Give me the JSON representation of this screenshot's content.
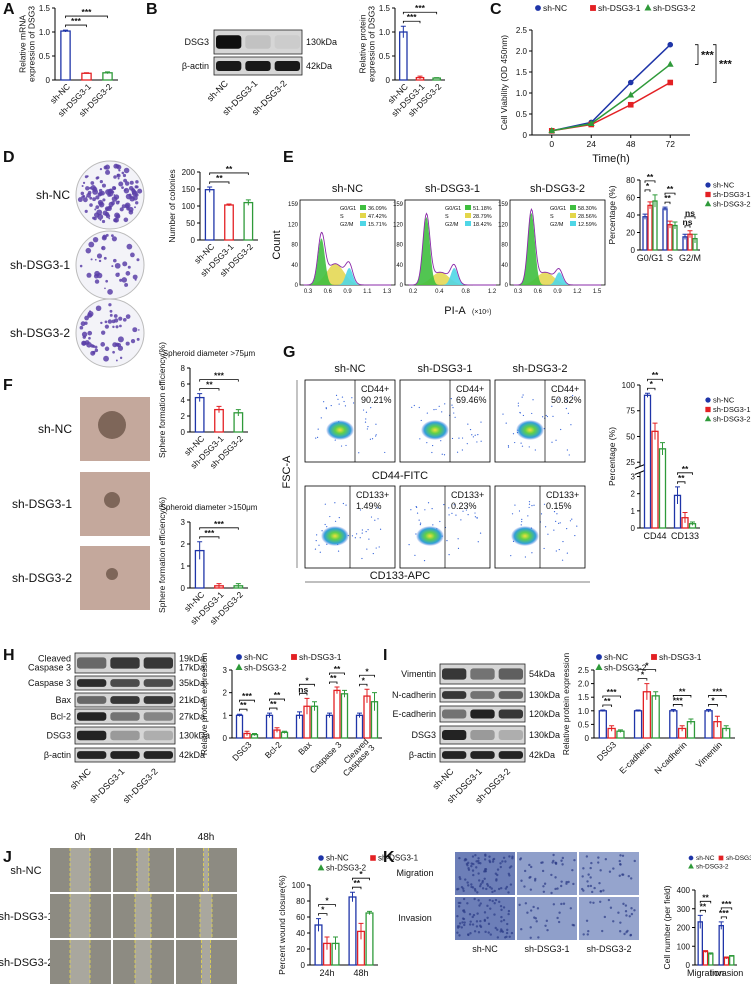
{
  "letters": [
    "A",
    "B",
    "C",
    "D",
    "E",
    "F",
    "G",
    "H",
    "I",
    "J",
    "K"
  ],
  "blots": [
    {
      "rows": [
        {
          "name": "DSG3",
          "kda": "130kDa"
        },
        {
          "name": "β-actin",
          "kda": "42kDa"
        }
      ],
      "lanes": [
        "sh-NC",
        "sh-DSG3-1",
        "sh-DSG3-2"
      ]
    },
    {
      "rows": [
        {
          "name": [
            "Cleaved",
            "Caspase 3"
          ],
          "kda": [
            "19kDa",
            "17kDa"
          ]
        },
        {
          "name": "Caspase 3",
          "kda": "35kDa"
        },
        {
          "name": "Bax",
          "kda": "21kDa"
        },
        {
          "name": "Bcl-2",
          "kda": "27kDa"
        },
        {
          "name": "DSG3",
          "kda": "130kDa"
        },
        {
          "name": "β-actin",
          "kda": "42kDa"
        }
      ],
      "lanes": [
        "sh-NC",
        "sh-DSG3-1",
        "sh-DSG3-2"
      ]
    },
    {
      "rows": [
        {
          "name": "Vimentin",
          "kda": "54kDa"
        },
        {
          "name": "N-cadherin",
          "kda": "130kDa"
        },
        {
          "name": "E-cadherin",
          "kda": "120kDa"
        },
        {
          "name": "DSG3",
          "kda": "130kDa"
        },
        {
          "name": "β-actin",
          "kda": "42kDa"
        }
      ],
      "lanes": [
        "sh-NC",
        "sh-DSG3-1",
        "sh-DSG3-2"
      ]
    }
  ],
  "colonies": {
    "labels": [
      "sh-NC",
      "sh-DSG3-1",
      "sh-DSG3-2"
    ]
  },
  "spheres": {
    "labels": [
      "sh-NC",
      "sh-DSG3-1",
      "sh-DSG3-2"
    ]
  },
  "cell_cycle": {
    "ylabel": "Count",
    "xlabel": "PI-A",
    "unit": "(×10⁶)",
    "panels": [
      {
        "title": "sh-NC",
        "yticks": [
          "0",
          "40",
          "80",
          "120",
          "159"
        ],
        "xticks": [
          "0.3",
          "0.6",
          "0.9",
          "1.1",
          "1.3"
        ],
        "phases": [
          {
            "phase": "G0/G1",
            "pct": "36.09%"
          },
          {
            "phase": "S",
            "pct": "47.42%"
          },
          {
            "phase": "G2/M",
            "pct": "15.71%"
          }
        ]
      },
      {
        "title": "sh-DSG3-1",
        "yticks": [
          "0",
          "40",
          "80",
          "120",
          "159"
        ],
        "xticks": [
          "0.2",
          "0.4",
          "0.8",
          "1.2"
        ],
        "phases": [
          {
            "phase": "G0/G1",
            "pct": "51.18%"
          },
          {
            "phase": "S",
            "pct": "28.79%"
          },
          {
            "phase": "G2/M",
            "pct": "18.42%"
          }
        ]
      },
      {
        "title": "sh-DSG3-2",
        "yticks": [
          "0",
          "40",
          "80",
          "120",
          "159"
        ],
        "xticks": [
          "0.3",
          "0.6",
          "0.9",
          "1.2",
          "1.5"
        ],
        "phases": [
          {
            "phase": "G0/G1",
            "pct": "58.30%"
          },
          {
            "phase": "S",
            "pct": "28.56%"
          },
          {
            "phase": "G2/M",
            "pct": "12.59%"
          }
        ]
      }
    ]
  },
  "flow": {
    "columns": [
      "sh-NC",
      "sh-DSG3-1",
      "sh-DSG3-2"
    ],
    "top": [
      {
        "marker": "CD44+",
        "pct": "90.21%"
      },
      {
        "marker": "CD44+",
        "pct": "69.46%"
      },
      {
        "marker": "CD44+",
        "pct": "50.82%"
      }
    ],
    "bottom": [
      {
        "marker": "CD133+",
        "pct": "1.49%"
      },
      {
        "marker": "CD133+",
        "pct": "0.23%"
      },
      {
        "marker": "CD133+",
        "pct": "0.15%"
      }
    ],
    "ylabel": "FSC-A",
    "xlabel_top": "CD44-FITC",
    "xlabel_bottom": "CD133-APC"
  },
  "wound": {
    "times": [
      "0h",
      "24h",
      "48h"
    ],
    "rows": [
      "sh-NC",
      "sh-DSG3-1",
      "sh-DSG3-2"
    ]
  },
  "transwell": {
    "rows": [
      "Migration",
      "Invasion"
    ],
    "columns": [
      "sh-NC",
      "sh-DSG3-1",
      "sh-DSG3-2"
    ]
  },
  "chart_data": [
    {
      "type": "bar",
      "ylabel": [
        "Relative mRNA",
        "expression of DSG3"
      ],
      "categories": [
        "sh-NC",
        "sh-DSG3-1",
        "sh-DSG3-2"
      ],
      "values": [
        1.02,
        0.14,
        0.15
      ],
      "errors": [
        0.02,
        0.01,
        0.02
      ],
      "colors": [
        "#1f35a8",
        "#e32124",
        "#2f9a3a"
      ],
      "ylim": [
        0,
        1.5
      ],
      "yticks": [
        0,
        0.5,
        {
          "value": 1,
          "label": "1.0"
        },
        1.5
      ],
      "annotations": [
        "***",
        "***"
      ]
    },
    {
      "type": "bar",
      "ylabel": [
        "Relative protein",
        "expression of DSG3"
      ],
      "categories": [
        "sh-NC",
        "sh-DSG3-1",
        "sh-DSG3-2"
      ],
      "values": [
        1.0,
        0.05,
        0.04
      ],
      "errors": [
        0.12,
        0.03,
        0.01
      ],
      "colors": [
        "#1f35a8",
        "#e32124",
        "#2f9a3a"
      ],
      "ylim": [
        0,
        1.5
      ],
      "yticks": [
        0,
        0.5,
        {
          "value": 1,
          "label": "1.0"
        },
        1.5
      ],
      "annotations": [
        "***",
        "***"
      ]
    },
    {
      "type": "line",
      "ylabel": "Cell Viability (OD 450nm)",
      "xlabel": "Time(h)",
      "x": [
        0,
        24,
        48,
        72
      ],
      "xlim": [
        -12,
        84
      ],
      "xticks": [
        0,
        24,
        48,
        72
      ],
      "ylim": [
        0,
        2.5
      ],
      "yticks": [
        0,
        0.5,
        {
          "value": 1,
          "label": "1.0"
        },
        1.5,
        {
          "value": 2,
          "label": "2.0"
        },
        2.5
      ],
      "series": [
        {
          "name": "sh-NC",
          "color": "#1f35a8",
          "values": [
            0.1,
            0.3,
            1.25,
            2.15
          ]
        },
        {
          "name": "sh-DSG3-1",
          "color": "#e32124",
          "values": [
            0.1,
            0.25,
            0.72,
            1.25
          ]
        },
        {
          "name": "sh-DSG3-2",
          "color": "#2f9a3a",
          "values": [
            0.1,
            0.27,
            0.95,
            1.68
          ]
        }
      ],
      "annotations": [
        "***",
        "***"
      ]
    },
    {
      "type": "bar",
      "ylabel": "Number of colonies",
      "categories": [
        "sh-NC",
        "sh-DSG3-1",
        "sh-DSG3-2"
      ],
      "values": [
        148,
        103,
        110
      ],
      "errors": [
        8,
        3,
        8
      ],
      "colors": [
        "#1f35a8",
        "#e32124",
        "#2f9a3a"
      ],
      "ylim": [
        0,
        200
      ],
      "yticks": [
        0,
        50,
        100,
        150,
        200
      ],
      "annotations": [
        "**",
        "**"
      ]
    },
    {
      "type": "grouped_bar",
      "ylabel": "Percentage (%)",
      "categories": [
        "G0/G1",
        "S",
        "G2/M"
      ],
      "series": [
        {
          "name": "sh-NC",
          "color": "#1f35a8",
          "values": [
            38,
            47,
            15
          ],
          "errors": [
            3,
            2,
            3
          ]
        },
        {
          "name": "sh-DSG3-1",
          "color": "#e32124",
          "values": [
            51,
            29,
            18
          ],
          "errors": [
            4,
            4,
            4
          ]
        },
        {
          "name": "sh-DSG3-2",
          "color": "#2f9a3a",
          "values": [
            56,
            28,
            13
          ],
          "errors": [
            7,
            4,
            5
          ]
        }
      ],
      "ylim": [
        0,
        80
      ],
      "yticks": [
        0,
        20,
        40,
        60,
        80
      ],
      "annotations": [
        "**",
        "*",
        "**",
        "**",
        "ns",
        "ns"
      ]
    },
    {
      "type": "bar",
      "title": "Spheroid diameter >75μm",
      "ylabel": "Sphere formation efficiency(%)",
      "categories": [
        "sh-NC",
        "sh-DSG3-1",
        "sh-DSG3-2"
      ],
      "values": [
        4.3,
        2.8,
        2.4
      ],
      "errors": [
        0.5,
        0.4,
        0.4
      ],
      "colors": [
        "#1f35a8",
        "#e32124",
        "#2f9a3a"
      ],
      "ylim": [
        0,
        8
      ],
      "yticks": [
        0,
        2,
        4,
        6,
        8
      ],
      "annotations": [
        "***",
        "**"
      ]
    },
    {
      "type": "bar",
      "title": "Spheroid diameter >150μm",
      "ylabel": "Sphere formation efficiency(%)",
      "categories": [
        "sh-NC",
        "sh-DSG3-1",
        "sh-DSG3-2"
      ],
      "values": [
        1.7,
        0.1,
        0.1
      ],
      "errors": [
        0.4,
        0.1,
        0.1
      ],
      "colors": [
        "#1f35a8",
        "#e32124",
        "#2f9a3a"
      ],
      "ylim": [
        0,
        3
      ],
      "yticks": [
        0,
        1,
        2,
        3
      ],
      "annotations": [
        "***",
        "***"
      ]
    },
    {
      "type": "grouped_bar",
      "ylabel": "Percentage (%)",
      "categories": [
        "CD44",
        "CD133"
      ],
      "series": [
        {
          "name": "sh-NC",
          "color": "#1f35a8",
          "values": [
            90,
            1.9
          ],
          "errors": [
            2,
            0.5
          ]
        },
        {
          "name": "sh-DSG3-1",
          "color": "#e32124",
          "values": [
            55,
            0.6
          ],
          "errors": [
            8,
            0.3
          ]
        },
        {
          "name": "sh-DSG3-2",
          "color": "#2f9a3a",
          "values": [
            38,
            0.25
          ],
          "errors": [
            6,
            0.1
          ]
        }
      ],
      "ylim": [
        0,
        100
      ],
      "yticks": [
        0,
        1,
        2,
        3,
        25,
        50,
        75,
        100
      ],
      "axis_break": [
        3,
        25
      ],
      "annotations": [
        "**",
        "*",
        "**",
        "**"
      ]
    },
    {
      "type": "grouped_bar",
      "ylabel": "Relative protein expression",
      "categories": [
        "DSG3",
        "Bcl-2",
        "Bax",
        "Caspase 3",
        [
          "Cleaved",
          "Caspase 3"
        ]
      ],
      "series": [
        {
          "name": "sh-NC",
          "color": "#1f35a8",
          "values": [
            1,
            1,
            1,
            1,
            1
          ],
          "errors": [
            0.05,
            0.1,
            0.15,
            0.1,
            0.1
          ]
        },
        {
          "name": "sh-DSG3-1",
          "color": "#e32124",
          "values": [
            0.2,
            0.35,
            1.4,
            2.1,
            1.85
          ],
          "errors": [
            0.1,
            0.1,
            0.35,
            0.15,
            0.3
          ]
        },
        {
          "name": "sh-DSG3-2",
          "color": "#2f9a3a",
          "values": [
            0.15,
            0.25,
            1.4,
            1.95,
            1.6
          ],
          "errors": [
            0.05,
            0.05,
            0.2,
            0.15,
            0.4
          ]
        }
      ],
      "ylim": [
        0,
        3
      ],
      "yticks": [
        0,
        1,
        2,
        3
      ],
      "annotations": [
        "***",
        "**",
        "**",
        "**",
        "*",
        "ns",
        "**",
        "**",
        "*",
        "*"
      ]
    },
    {
      "type": "grouped_bar",
      "ylabel": "Relative protein expression",
      "categories": [
        "DSG3",
        "E-cadherin",
        "N-cadherin",
        "Vimentin"
      ],
      "series": [
        {
          "name": "sh-NC",
          "color": "#1f35a8",
          "values": [
            1,
            1,
            1,
            1
          ],
          "errors": [
            0.03,
            0.03,
            0.05,
            0.05
          ]
        },
        {
          "name": "sh-DSG3-1",
          "color": "#e32124",
          "values": [
            0.35,
            1.7,
            0.35,
            0.6
          ],
          "errors": [
            0.1,
            0.3,
            0.1,
            0.2
          ]
        },
        {
          "name": "sh-DSG3-2",
          "color": "#2f9a3a",
          "values": [
            0.25,
            1.55,
            0.6,
            0.35
          ],
          "errors": [
            0.05,
            0.15,
            0.1,
            0.1
          ]
        }
      ],
      "ylim": [
        0,
        2.5
      ],
      "yticks": [
        0,
        0.5,
        {
          "value": 1,
          "label": "1.0"
        },
        1.5,
        {
          "value": 2,
          "label": "2.0"
        },
        2.5
      ],
      "annotations": [
        "***",
        "**",
        "*",
        "*",
        "**",
        "***",
        "***",
        "*"
      ]
    },
    {
      "type": "grouped_bar",
      "ylabel": "Percent wound closure(%)",
      "categories": [
        "24h",
        "48h"
      ],
      "series": [
        {
          "name": "sh-NC",
          "color": "#1f35a8",
          "values": [
            50,
            85
          ],
          "errors": [
            8,
            6
          ]
        },
        {
          "name": "sh-DSG3-1",
          "color": "#e32124",
          "values": [
            27,
            42
          ],
          "errors": [
            8,
            10
          ]
        },
        {
          "name": "sh-DSG3-2",
          "color": "#2f9a3a",
          "values": [
            27,
            65
          ],
          "errors": [
            8,
            2
          ]
        }
      ],
      "ylim": [
        0,
        100
      ],
      "yticks": [
        0,
        20,
        40,
        60,
        80,
        100
      ],
      "annotations": [
        "*",
        "*",
        "*",
        "**"
      ]
    },
    {
      "type": "grouped_bar",
      "ylabel": "Cell number (per field)",
      "categories": [
        "Migration",
        "Invasion"
      ],
      "series": [
        {
          "name": "sh-NC",
          "color": "#1f35a8",
          "values": [
            230,
            210
          ],
          "errors": [
            35,
            20
          ]
        },
        {
          "name": "sh-DSG3-1",
          "color": "#e32124",
          "values": [
            72,
            38
          ],
          "errors": [
            5,
            5
          ]
        },
        {
          "name": "sh-DSG3-2",
          "color": "#2f9a3a",
          "values": [
            60,
            48
          ],
          "errors": [
            5,
            3
          ]
        }
      ],
      "ylim": [
        0,
        400
      ],
      "yticks": [
        0,
        100,
        200,
        300,
        400
      ],
      "annotations": [
        "**",
        "**",
        "***",
        "***"
      ]
    }
  ]
}
